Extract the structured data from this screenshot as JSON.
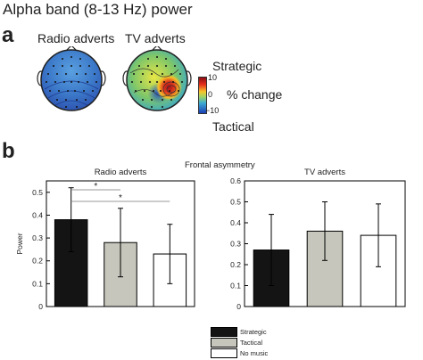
{
  "title": "Alpha band (8-13 Hz) power",
  "panel_a": {
    "letter": "a",
    "topo_labels": [
      "Radio adverts",
      "TV adverts"
    ],
    "colorbar": {
      "top_label": "Strategic",
      "mid_label": "% change",
      "bottom_label": "Tactical",
      "ticks": [
        "10",
        "0",
        "−10"
      ]
    }
  },
  "panel_b": {
    "letter": "b",
    "heading": "Frontal asymmetry"
  },
  "colors": {
    "Strategic": "#141414",
    "Tactical": "#c6c6bc",
    "No music": "#ffffff"
  },
  "chart_data": [
    {
      "type": "bar",
      "title": "Radio adverts",
      "ylabel": "Power",
      "ylim": [
        0,
        0.55
      ],
      "yticks": [
        "0",
        "0.1",
        "0.2",
        "0.3",
        "0.4",
        "0.5"
      ],
      "categories": [
        "Strategic",
        "Tactical",
        "No music"
      ],
      "values": [
        0.38,
        0.28,
        0.23
      ],
      "errors": [
        0.14,
        0.15,
        0.13
      ],
      "annotations": [
        {
          "label": "*",
          "from": "Strategic",
          "to": "Tactical"
        },
        {
          "label": "*",
          "from": "Strategic",
          "to": "No music"
        }
      ]
    },
    {
      "type": "bar",
      "title": "TV adverts",
      "ylabel": "",
      "ylim": [
        0,
        0.6
      ],
      "yticks": [
        "0",
        "0.1",
        "0.2",
        "0.3",
        "0.4",
        "0.5",
        "0.6"
      ],
      "categories": [
        "Strategic",
        "Tactical",
        "No music"
      ],
      "values": [
        0.27,
        0.36,
        0.34
      ],
      "errors": [
        0.17,
        0.14,
        0.15
      ]
    }
  ],
  "legend": {
    "items": [
      "Strategic",
      "Tactical",
      "No music"
    ]
  }
}
